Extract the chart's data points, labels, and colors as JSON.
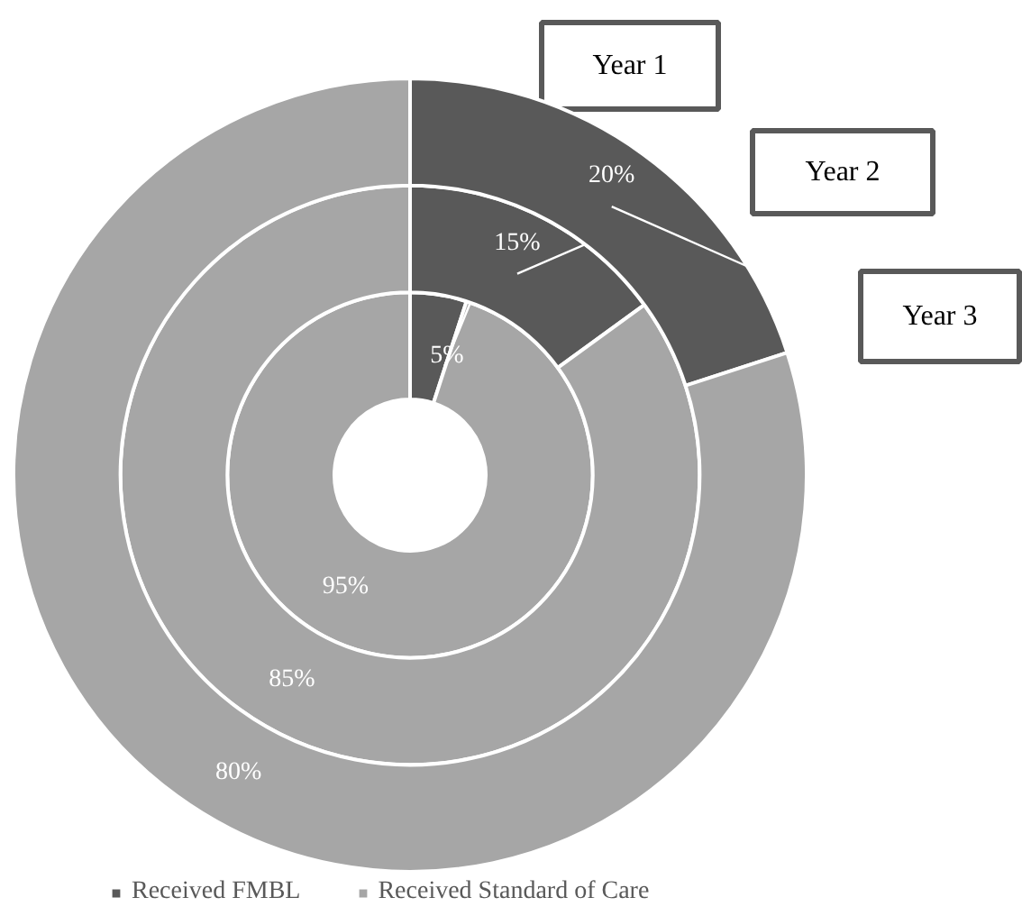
{
  "chart_data": {
    "type": "donut",
    "categories": [
      "Received FMBL",
      "Received Standard of Care"
    ],
    "series": [
      {
        "name": "Year 1",
        "values": [
          5,
          95
        ],
        "colors": [
          "#595959",
          "#a6a6a6"
        ],
        "value_labels": [
          "5%",
          "95%"
        ]
      },
      {
        "name": "Year 2",
        "values": [
          15,
          85
        ],
        "colors": [
          "#595959",
          "#a6a6a6"
        ],
        "value_labels": [
          "15%",
          "85%"
        ]
      },
      {
        "name": "Year 3",
        "values": [
          20,
          80
        ],
        "colors": [
          "#595959",
          "#a6a6a6"
        ],
        "value_labels": [
          "20%",
          "80%"
        ]
      }
    ],
    "legend": "bottom"
  }
}
